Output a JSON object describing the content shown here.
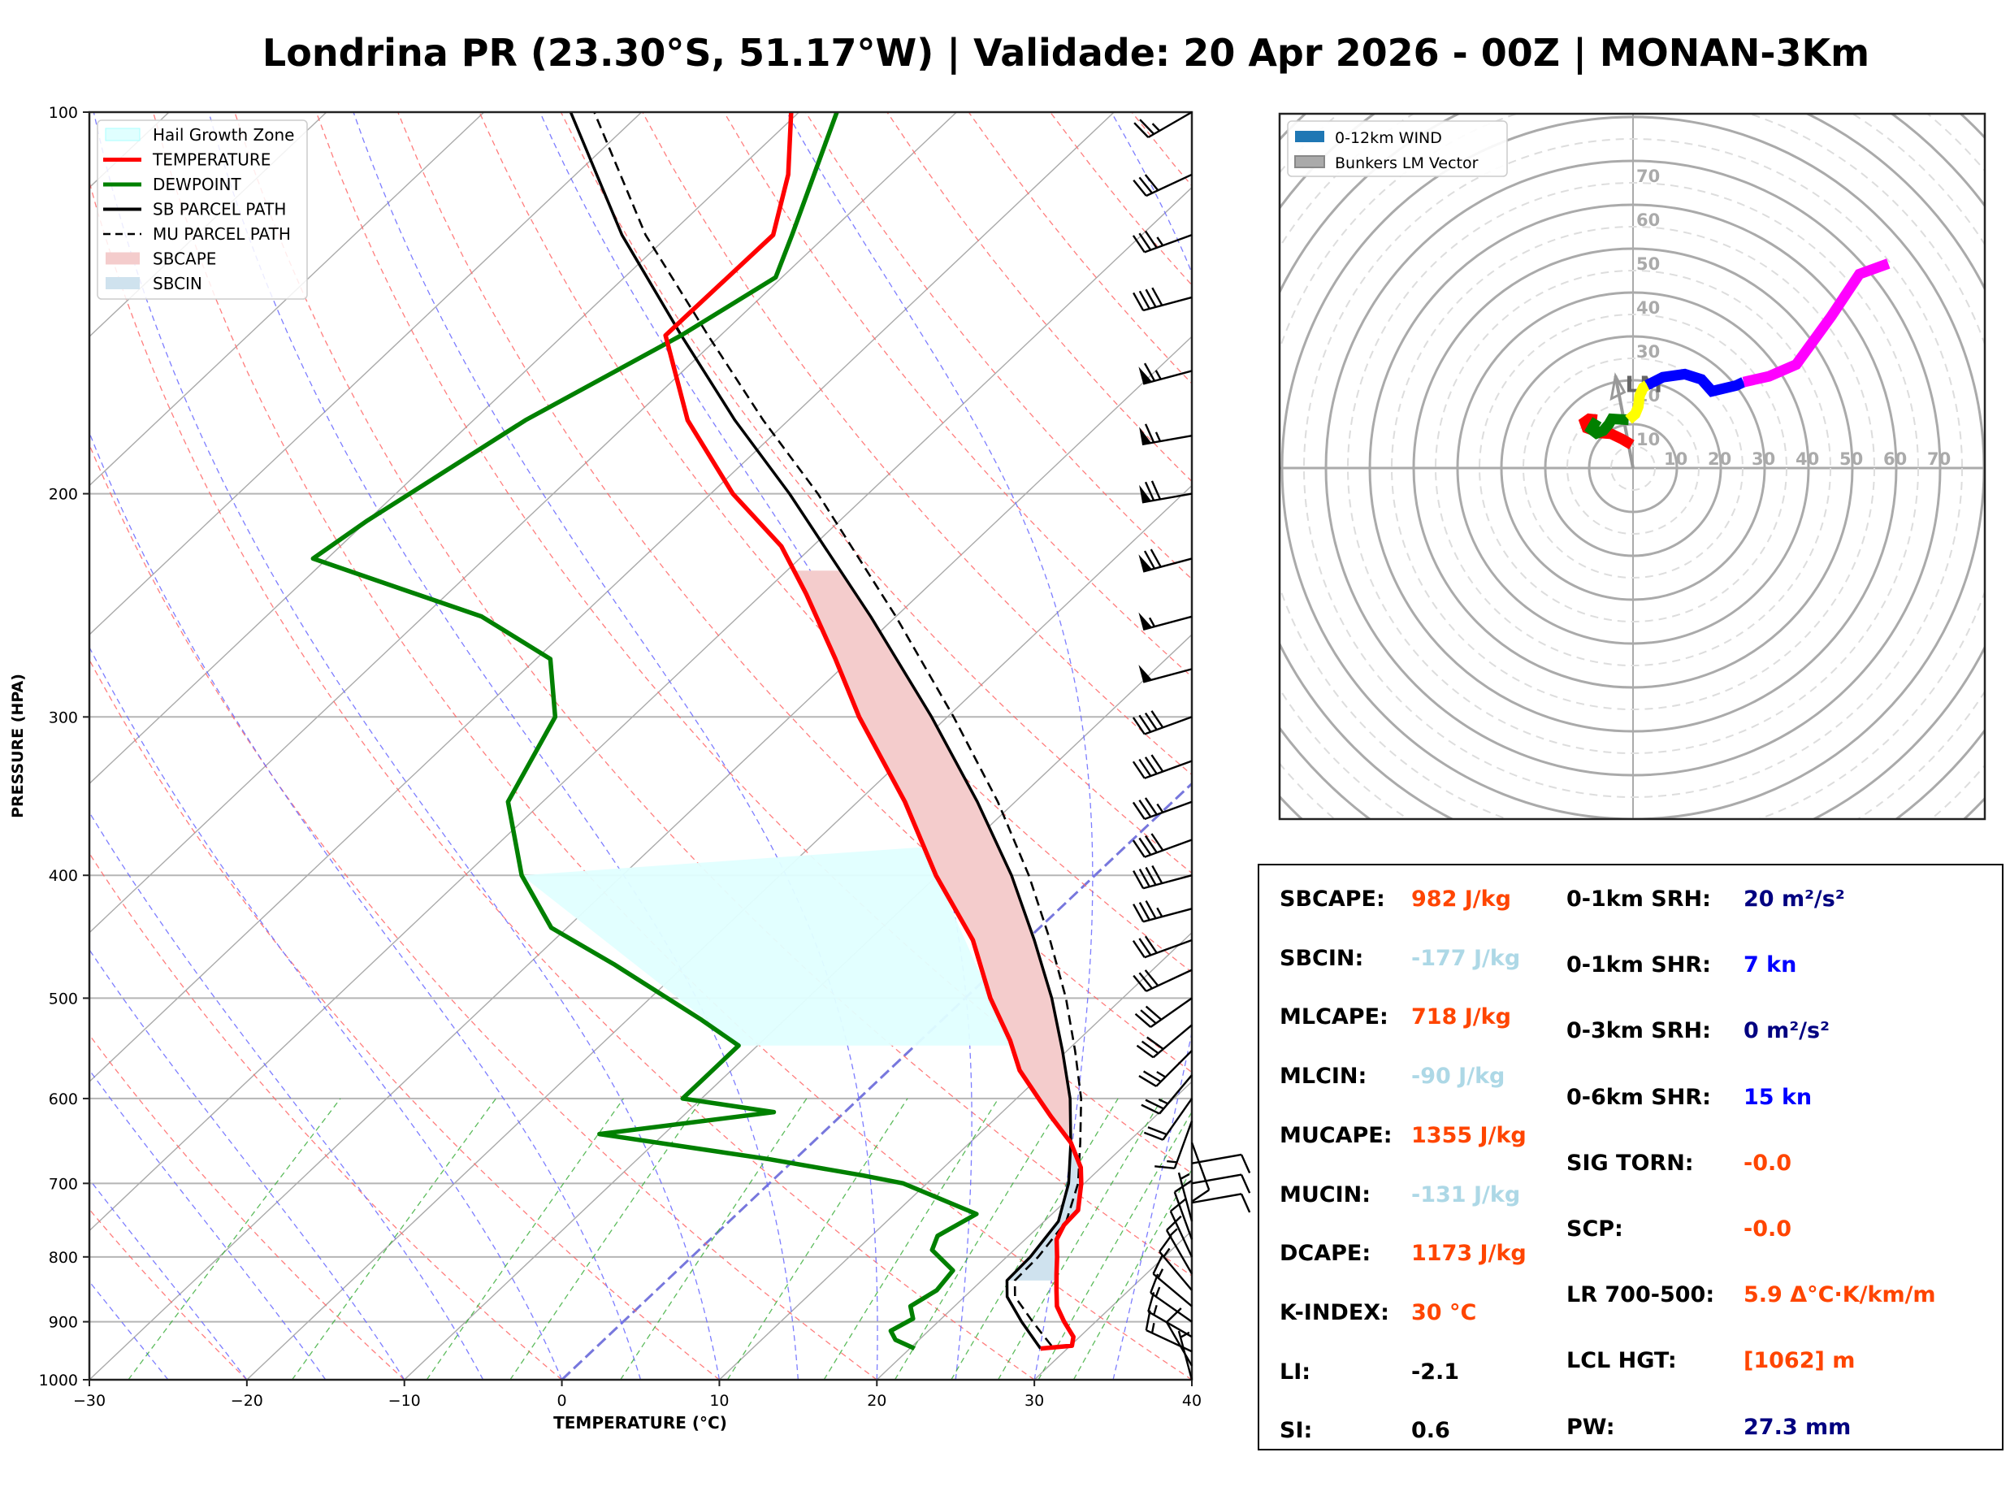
{
  "title": "Londrina PR (23.30°S, 51.17°W) | Validade: 20 Apr 2026 - 00Z | MONAN-3Km",
  "colors": {
    "temperature": "#ff0000",
    "dewpoint": "#008000",
    "parcel": "#000000",
    "sbcape_fill": "#f4cccc",
    "sbcin_fill": "#cfe2ee",
    "hail_fill": "#e0ffff",
    "dry_adiabat": "#ff6666",
    "moist_adiabat": "#6666ff",
    "mixing_ratio": "#33aa33",
    "isotherm": "#aaaaaa",
    "value_orange": "#ff4500",
    "value_lightblue": "#add8e6",
    "value_navy": "#000080",
    "value_blue": "#0000ff",
    "value_black": "#000000",
    "hodo_0_1": "#ff0000",
    "hodo_1_3": "#008000",
    "hodo_3_6": "#ffff00",
    "hodo_6_9": "#0000ff",
    "hodo_9_12": "#ff00ff",
    "lm_vector": "#999999"
  },
  "chart_data": [
    {
      "type": "line",
      "name": "skewt",
      "xlabel": "TEMPERATURE (°C)",
      "ylabel": "PRESSURE (HPA)",
      "xlim": [
        -30,
        40
      ],
      "ylim": [
        1000,
        100
      ],
      "yscale": "log",
      "x_ticks": [
        -30,
        -20,
        -10,
        0,
        10,
        20,
        30,
        40
      ],
      "x_tick_labels": [
        "−30",
        "−20",
        "−10",
        "0",
        "10",
        "20",
        "30",
        "40"
      ],
      "y_ticks": [
        100,
        200,
        300,
        400,
        500,
        600,
        700,
        800,
        900,
        1000
      ],
      "y_tick_labels": [
        "100",
        "200",
        "300",
        "400",
        "500",
        "600",
        "700",
        "800",
        "900",
        "1000"
      ],
      "legend": {
        "position": "top-left",
        "entries": [
          "Hail Growth Zone",
          "TEMPERATURE",
          "DEWPOINT",
          "SB PARCEL PATH",
          "MU PARCEL PATH",
          "SBCAPE",
          "SBCIN"
        ]
      },
      "series": [
        {
          "name": "TEMPERATURE",
          "points": [
            [
              945,
              28.3
            ],
            [
              940,
              30.1
            ],
            [
              925,
              29.6
            ],
            [
              900,
              28.0
            ],
            [
              875,
              26.5
            ],
            [
              850,
              25.4
            ],
            [
              825,
              24.3
            ],
            [
              800,
              23.2
            ],
            [
              775,
              22.0
            ],
            [
              755,
              21.5
            ],
            [
              735,
              21.4
            ],
            [
              700,
              19.8
            ],
            [
              680,
              18.7
            ],
            [
              650,
              16.4
            ],
            [
              620,
              13.4
            ],
            [
              600,
              11.4
            ],
            [
              570,
              8.3
            ],
            [
              540,
              5.7
            ],
            [
              500,
              1.6
            ],
            [
              450,
              -3.4
            ],
            [
              400,
              -10.1
            ],
            [
              350,
              -17.0
            ],
            [
              300,
              -25.6
            ],
            [
              270,
              -31.0
            ],
            [
              240,
              -37.2
            ],
            [
              220,
              -42.0
            ],
            [
              200,
              -48.6
            ],
            [
              175,
              -56.4
            ],
            [
              150,
              -63.5
            ],
            [
              125,
              -63.4
            ],
            [
              112,
              -66.5
            ],
            [
              100,
              -70.5
            ]
          ]
        },
        {
          "name": "DEWPOINT",
          "points": [
            [
              945,
              20.3
            ],
            [
              944,
              20.2
            ],
            [
              930,
              18.5
            ],
            [
              915,
              17.6
            ],
            [
              895,
              18.2
            ],
            [
              875,
              17.2
            ],
            [
              850,
              17.8
            ],
            [
              820,
              17.5
            ],
            [
              790,
              14.8
            ],
            [
              770,
              14.2
            ],
            [
              740,
              15.2
            ],
            [
              700,
              8.5
            ],
            [
              690,
              5.4
            ],
            [
              670,
              -1.6
            ],
            [
              640,
              -14.1
            ],
            [
              615,
              -4.5
            ],
            [
              600,
              -11.2
            ],
            [
              580,
              -11.2
            ],
            [
              545,
              -11.2
            ],
            [
              520,
              -15.3
            ],
            [
              470,
              -24.6
            ],
            [
              440,
              -31.0
            ],
            [
              400,
              -36.4
            ],
            [
              350,
              -42.2
            ],
            [
              300,
              -44.9
            ],
            [
              270,
              -49.1
            ],
            [
              250,
              -56.3
            ],
            [
              225,
              -70.9
            ],
            [
              210,
              -70.0
            ],
            [
              175,
              -66.7
            ],
            [
              150,
              -62.5
            ],
            [
              135,
              -60.4
            ],
            [
              125,
              -62.2
            ],
            [
              100,
              -67.6
            ]
          ]
        },
        {
          "name": "SB PARCEL PATH",
          "style": "solid",
          "points": [
            [
              945,
              28.3
            ],
            [
              900,
              25.3
            ],
            [
              860,
              22.7
            ],
            [
              835,
              21.6
            ],
            [
              800,
              21.5
            ],
            [
              750,
              20.9
            ],
            [
              700,
              19.0
            ],
            [
              650,
              16.4
            ],
            [
              600,
              13.4
            ],
            [
              550,
              9.7
            ],
            [
              500,
              5.5
            ],
            [
              450,
              0.5
            ],
            [
              400,
              -5.3
            ],
            [
              350,
              -12.4
            ],
            [
              300,
              -21.0
            ],
            [
              250,
              -31.6
            ],
            [
              200,
              -45.0
            ],
            [
              175,
              -53.4
            ],
            [
              150,
              -62.5
            ],
            [
              125,
              -73.0
            ],
            [
              100,
              -84.5
            ]
          ]
        },
        {
          "name": "MU PARCEL PATH",
          "style": "dashed",
          "points": [
            [
              940,
              28.8
            ],
            [
              900,
              26.0
            ],
            [
              860,
              23.2
            ],
            [
              835,
              22.1
            ],
            [
              800,
              22.0
            ],
            [
              750,
              21.4
            ],
            [
              700,
              19.6
            ],
            [
              650,
              17.0
            ],
            [
              600,
              14.1
            ],
            [
              550,
              10.5
            ],
            [
              500,
              6.4
            ],
            [
              450,
              1.5
            ],
            [
              400,
              -4.2
            ],
            [
              350,
              -11.1
            ],
            [
              300,
              -19.6
            ],
            [
              250,
              -30.0
            ],
            [
              200,
              -43.2
            ],
            [
              175,
              -51.6
            ],
            [
              150,
              -60.8
            ],
            [
              125,
              -71.5
            ],
            [
              100,
              -83.0
            ]
          ]
        }
      ],
      "fills": [
        {
          "name": "SBCAPE",
          "between": [
            "TEMPERATURE",
            "SB PARCEL PATH"
          ],
          "p_range": [
            640,
            230
          ]
        },
        {
          "name": "SBCIN",
          "between": [
            "SB PARCEL PATH",
            "TEMPERATURE"
          ],
          "p_range": [
            835,
            640
          ]
        },
        {
          "name": "Hail Growth Zone",
          "t_range_C": [
            -30,
            -10
          ],
          "p_range": [
            545,
            380
          ]
        }
      ],
      "wind_barbs": [
        {
          "p": 1000,
          "dir": 345,
          "spd": 5
        },
        {
          "p": 975,
          "dir": 330,
          "spd": 10
        },
        {
          "p": 950,
          "dir": 295,
          "spd": 15
        },
        {
          "p": 925,
          "dir": 300,
          "spd": 15
        },
        {
          "p": 900,
          "dir": 305,
          "spd": 15
        },
        {
          "p": 875,
          "dir": 310,
          "spd": 15
        },
        {
          "p": 850,
          "dir": 320,
          "spd": 15
        },
        {
          "p": 825,
          "dir": 330,
          "spd": 15
        },
        {
          "p": 800,
          "dir": 335,
          "spd": 10
        },
        {
          "p": 775,
          "dir": 340,
          "spd": 10
        },
        {
          "p": 750,
          "dir": 345,
          "spd": 5
        },
        {
          "p": 725,
          "dir": 80,
          "spd": 10
        },
        {
          "p": 700,
          "dir": 80,
          "spd": 10
        },
        {
          "p": 675,
          "dir": 80,
          "spd": 10
        },
        {
          "p": 650,
          "dir": 160,
          "spd": 10
        },
        {
          "p": 625,
          "dir": 200,
          "spd": 15
        },
        {
          "p": 600,
          "dir": 215,
          "spd": 20
        },
        {
          "p": 575,
          "dir": 220,
          "spd": 25
        },
        {
          "p": 550,
          "dir": 225,
          "spd": 25
        },
        {
          "p": 525,
          "dir": 230,
          "spd": 30
        },
        {
          "p": 500,
          "dir": 235,
          "spd": 30
        },
        {
          "p": 475,
          "dir": 245,
          "spd": 30
        },
        {
          "p": 450,
          "dir": 250,
          "spd": 30
        },
        {
          "p": 425,
          "dir": 255,
          "spd": 35
        },
        {
          "p": 400,
          "dir": 255,
          "spd": 40
        },
        {
          "p": 375,
          "dir": 250,
          "spd": 40
        },
        {
          "p": 350,
          "dir": 250,
          "spd": 35
        },
        {
          "p": 325,
          "dir": 250,
          "spd": 40
        },
        {
          "p": 300,
          "dir": 250,
          "spd": 40
        },
        {
          "p": 275,
          "dir": 255,
          "spd": 50
        },
        {
          "p": 250,
          "dir": 255,
          "spd": 55
        },
        {
          "p": 225,
          "dir": 255,
          "spd": 70
        },
        {
          "p": 200,
          "dir": 260,
          "spd": 70
        },
        {
          "p": 180,
          "dir": 260,
          "spd": 65
        },
        {
          "p": 160,
          "dir": 255,
          "spd": 65
        },
        {
          "p": 140,
          "dir": 255,
          "spd": 40
        },
        {
          "p": 125,
          "dir": 250,
          "spd": 35
        },
        {
          "p": 112,
          "dir": 245,
          "spd": 30
        },
        {
          "p": 100,
          "dir": 240,
          "spd": 25
        }
      ]
    },
    {
      "type": "line",
      "name": "hodograph",
      "title": "",
      "xlim": [
        -80,
        80
      ],
      "ylim": [
        -80,
        80
      ],
      "ring_labels": [
        "10",
        "20",
        "30",
        "40",
        "50",
        "60",
        "70"
      ],
      "ring_values": [
        10,
        20,
        30,
        40,
        50,
        60,
        70
      ],
      "legend": {
        "position": "top-left",
        "entries": [
          "0-12km WIND",
          "Bunkers LM Vector"
        ]
      },
      "lm_label": "LM",
      "lm_vector": [
        -4,
        21
      ],
      "segments": [
        {
          "layer": "0-1km",
          "color_key": "hodo_0_1",
          "points": [
            [
              -0.3,
              5.3
            ],
            [
              -2.5,
              6.6
            ],
            [
              -5.0,
              7.8
            ],
            [
              -7.5,
              8.0
            ],
            [
              -10.5,
              9.1
            ],
            [
              -11.0,
              10.5
            ],
            [
              -10.0,
              11.2
            ],
            [
              -8.2,
              11.0
            ]
          ]
        },
        {
          "layer": "1-3km",
          "color_key": "hodo_1_3",
          "points": [
            [
              -8.2,
              11.0
            ],
            [
              -9.5,
              8.8
            ],
            [
              -8.3,
              7.9
            ],
            [
              -6.8,
              8.5
            ],
            [
              -5.5,
              10.0
            ],
            [
              -4.8,
              11.2
            ],
            [
              -3.0,
              11.1
            ],
            [
              -1.0,
              11.0
            ]
          ]
        },
        {
          "layer": "3-6km",
          "color_key": "hodo_3_6",
          "points": [
            [
              -1.0,
              11.0
            ],
            [
              0.5,
              12.3
            ],
            [
              1.2,
              14.0
            ],
            [
              1.5,
              16.5
            ],
            [
              2.3,
              18.3
            ],
            [
              3.2,
              18.9
            ]
          ]
        },
        {
          "layer": "6-9km",
          "color_key": "hodo_6_9",
          "points": [
            [
              3.2,
              18.9
            ],
            [
              6.8,
              20.7
            ],
            [
              11.8,
              21.4
            ],
            [
              15.6,
              20.2
            ],
            [
              18.0,
              17.5
            ],
            [
              23.5,
              18.8
            ],
            [
              25.2,
              19.6
            ]
          ]
        },
        {
          "layer": "9-12km",
          "color_key": "hodo_9_12",
          "points": [
            [
              25.2,
              19.6
            ],
            [
              31.0,
              20.9
            ],
            [
              37.2,
              23.6
            ],
            [
              45.2,
              34.6
            ],
            [
              51.6,
              44.2
            ],
            [
              58.2,
              46.6
            ]
          ]
        }
      ]
    }
  ],
  "stats": {
    "left": [
      {
        "label": "SBCAPE:",
        "value": "982 J/kg",
        "color_key": "value_orange"
      },
      {
        "label": "SBCIN:",
        "value": "-177 J/kg",
        "color_key": "value_lightblue"
      },
      {
        "label": "MLCAPE:",
        "value": "718 J/kg",
        "color_key": "value_orange"
      },
      {
        "label": "MLCIN:",
        "value": "-90 J/kg",
        "color_key": "value_lightblue"
      },
      {
        "label": "MUCAPE:",
        "value": "1355 J/kg",
        "color_key": "value_orange"
      },
      {
        "label": "MUCIN:",
        "value": "-131 J/kg",
        "color_key": "value_lightblue"
      },
      {
        "label": "DCAPE:",
        "value": "1173 J/kg",
        "color_key": "value_orange"
      },
      {
        "label": "K-INDEX:",
        "value": "30 °C",
        "color_key": "value_orange"
      },
      {
        "label": "LI:",
        "value": "-2.1",
        "color_key": "value_black"
      },
      {
        "label": "SI:",
        "value": "0.6",
        "color_key": "value_black"
      }
    ],
    "right": [
      {
        "label": "0-1km SRH:",
        "value": "20 m²/s²",
        "color_key": "value_navy"
      },
      {
        "label": "0-1km SHR:",
        "value": "7 kn",
        "color_key": "value_blue"
      },
      {
        "label": "0-3km SRH:",
        "value": "0 m²/s²",
        "color_key": "value_navy"
      },
      {
        "label": "0-6km SHR:",
        "value": "15 kn",
        "color_key": "value_blue"
      },
      {
        "label": "SIG TORN:",
        "value": "-0.0",
        "color_key": "value_orange"
      },
      {
        "label": "SCP:",
        "value": "-0.0",
        "color_key": "value_orange"
      },
      {
        "label": "LR 700-500:",
        "value": "5.9 Δ°C·K/km/m",
        "color_key": "value_orange"
      },
      {
        "label": "LCL HGT:",
        "value": "[1062] m",
        "color_key": "value_orange"
      },
      {
        "label": "PW:",
        "value": "27.3 mm",
        "color_key": "value_navy"
      }
    ]
  }
}
